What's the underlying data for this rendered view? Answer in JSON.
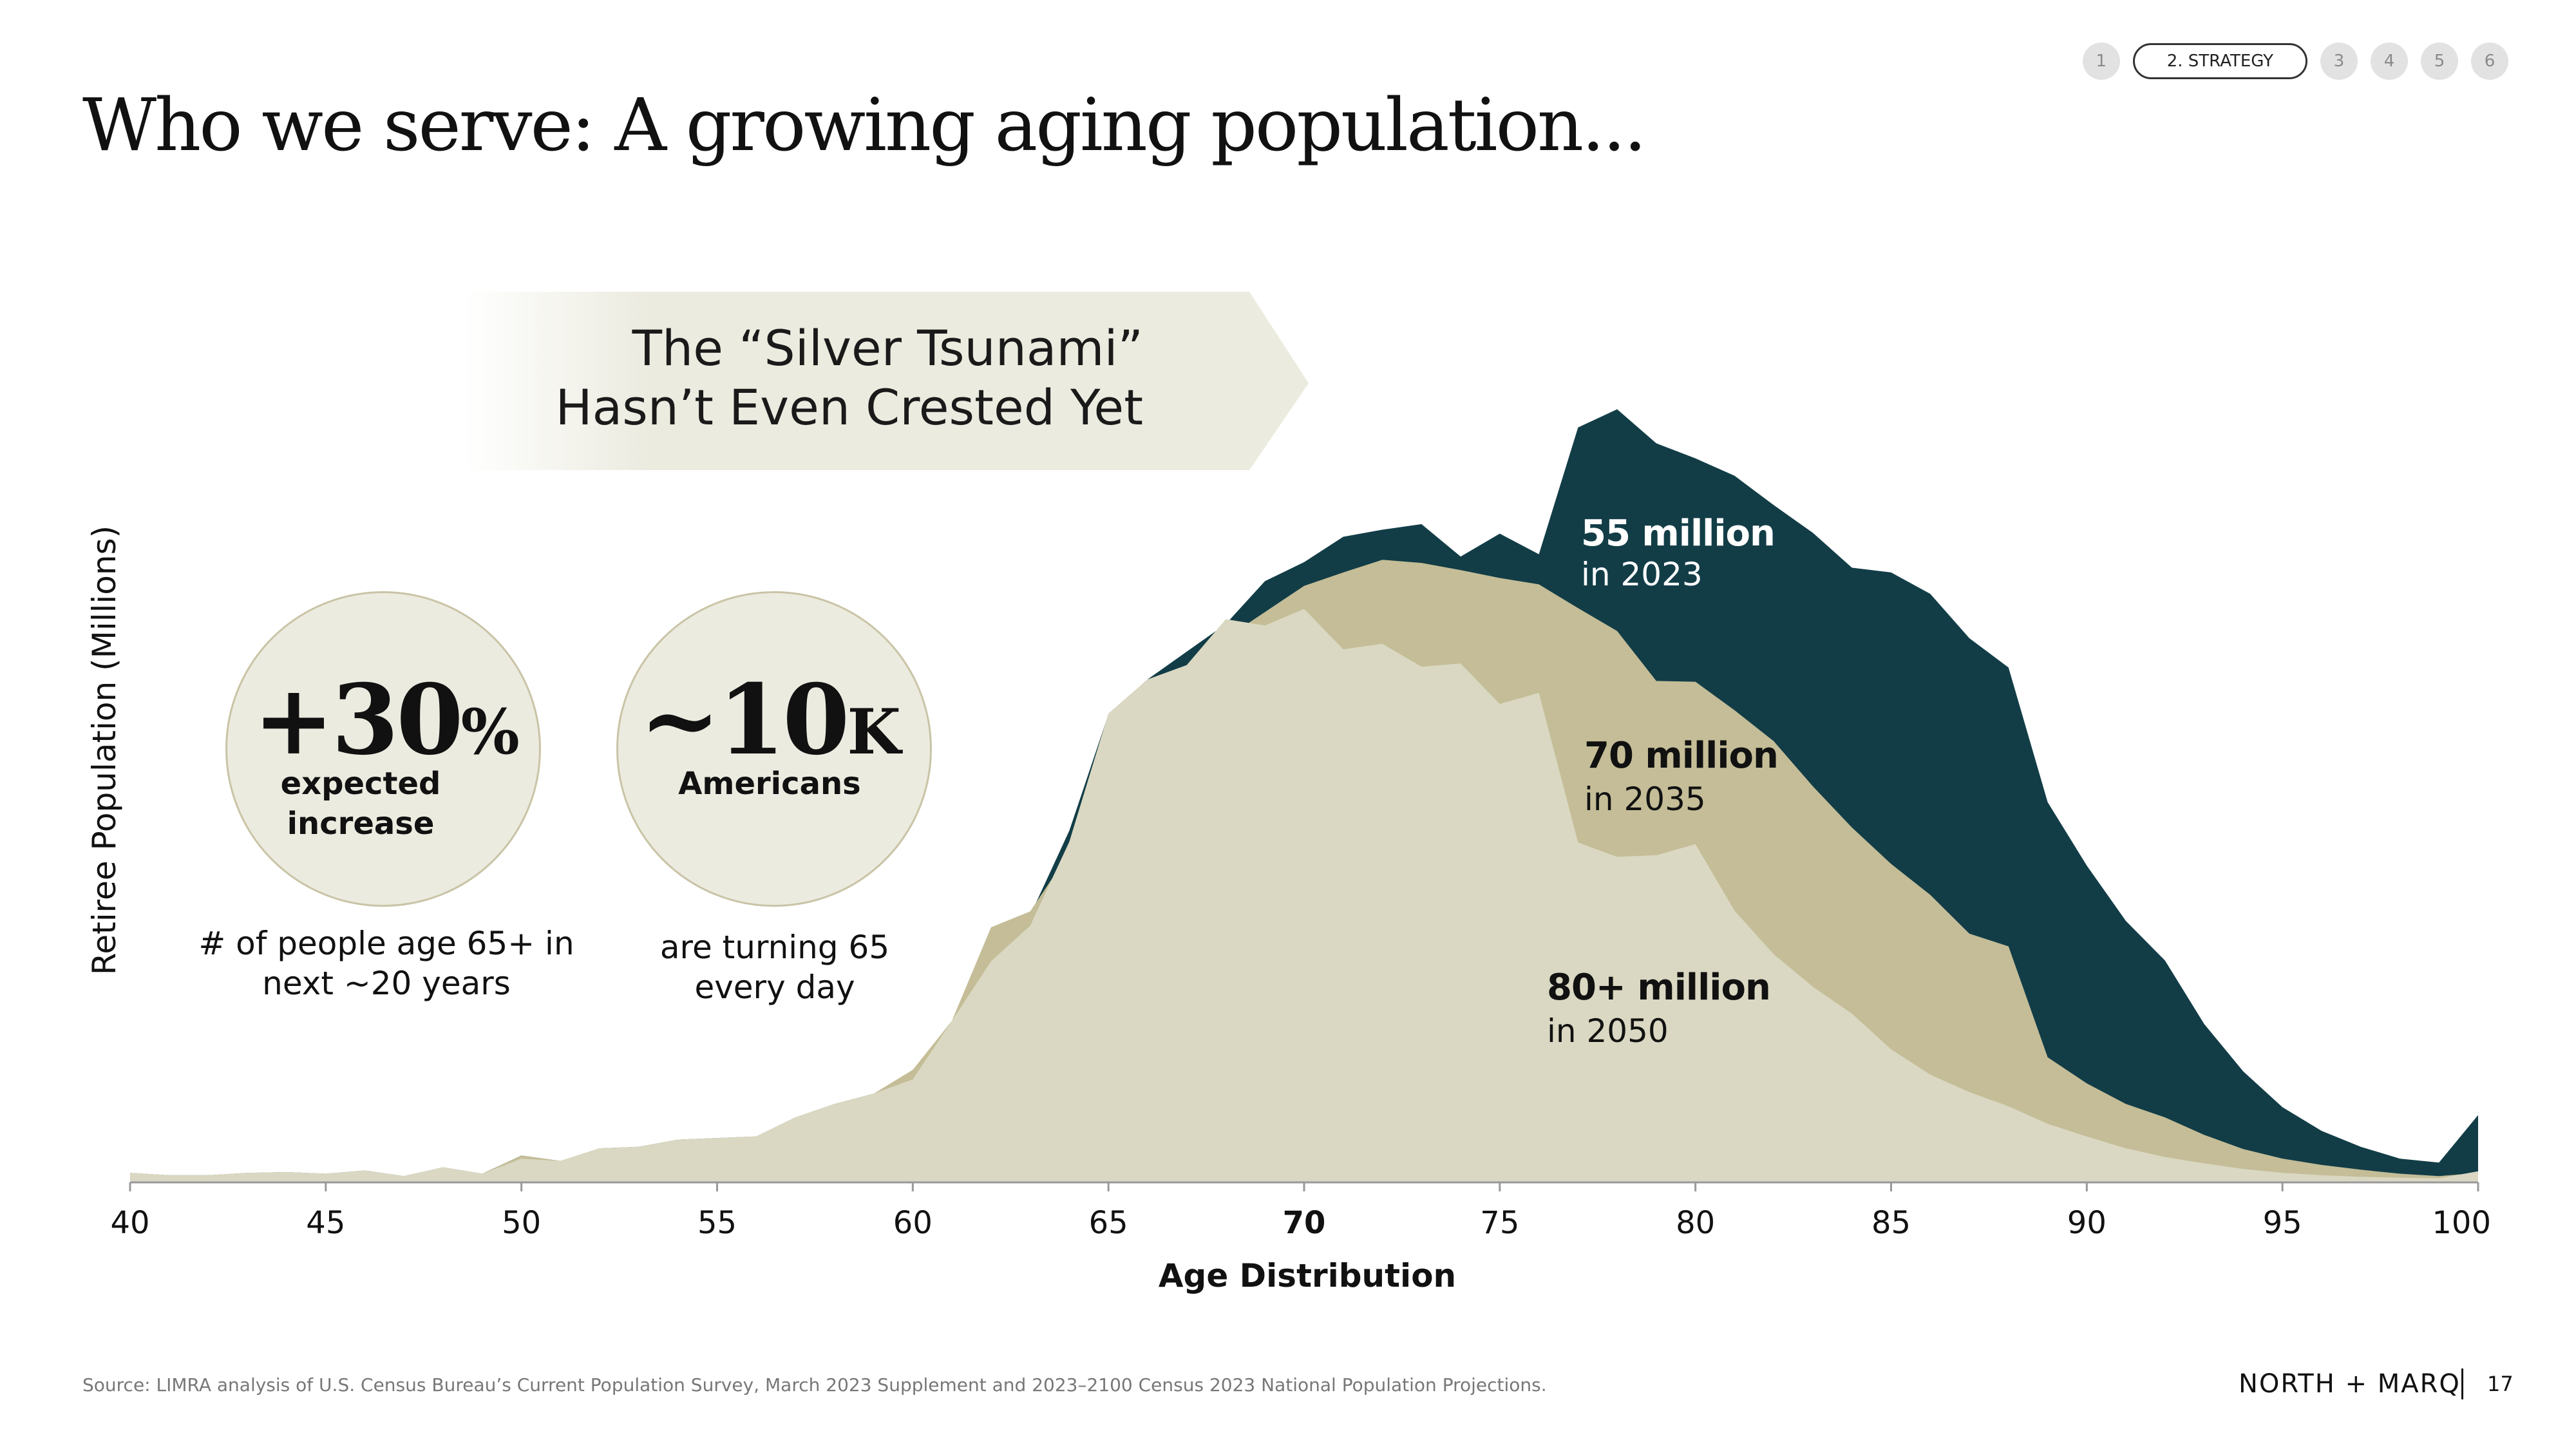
{
  "slide": {
    "title": "Who we serve: A growing aging population...",
    "page_number": "17",
    "logo_text": "NORTH + MARQ",
    "source": "Source: LIMRA analysis of U.S. Census Bureau’s Current Population Survey, March 2023 Supplement and 2023–2100 Census 2023 National Population Projections."
  },
  "nav": {
    "items": [
      "1",
      "2. STRATEGY",
      "3",
      "4",
      "5",
      "6"
    ],
    "active_index": 1
  },
  "banner": {
    "line1": "The “Silver Tsunami”",
    "line2": "Hasn’t Even Crested Yet"
  },
  "stats": [
    {
      "big": "+30",
      "big_suffix": "%",
      "sub": "expected increase",
      "desc_line1": "# of people age 65+ in",
      "desc_line2": "next ~20 years"
    },
    {
      "big": "~10",
      "big_suffix": "K",
      "sub": "Americans",
      "desc_line1": "are turning 65",
      "desc_line2": "every day"
    }
  ],
  "annotations": [
    {
      "value": "55 million",
      "year": "in 2023",
      "color": "#ffffff"
    },
    {
      "value": "70 million",
      "year": "in 2035",
      "color": "#111111"
    },
    {
      "value": "80+ million",
      "year": "in 2050",
      "color": "#111111"
    }
  ],
  "colors": {
    "series_2050": "#123d47",
    "series_2035": "#c4bd97",
    "series_2023": "#dad8c2",
    "banner_fill": "#ecebe0",
    "circle_fill": "#ecebe0"
  },
  "chart_data": {
    "type": "area",
    "title": "",
    "xlabel": "Age Distribution",
    "ylabel": "Retiree Population (Millions)",
    "x": [
      40,
      41,
      42,
      43,
      44,
      45,
      46,
      47,
      48,
      49,
      50,
      51,
      52,
      53,
      54,
      55,
      56,
      57,
      58,
      59,
      60,
      61,
      62,
      63,
      64,
      65,
      66,
      67,
      68,
      69,
      70,
      71,
      72,
      73,
      74,
      75,
      76,
      77,
      78,
      79,
      80,
      81,
      82,
      83,
      84,
      85,
      86,
      87,
      88,
      89,
      90,
      91,
      92,
      93,
      94,
      95,
      96,
      97,
      98,
      99,
      100
    ],
    "x_ticks": [
      40,
      45,
      50,
      55,
      60,
      65,
      70,
      75,
      80,
      85,
      90,
      95,
      100
    ],
    "highlight_tick": 70,
    "xlim": [
      40,
      100
    ],
    "grid": false,
    "legend": "none",
    "series": [
      {
        "values": [
          0.12,
          0.09,
          0.09,
          0.12,
          0.13,
          0.11,
          0.15,
          0.08,
          0.19,
          0.11,
          0.34,
          0.27,
          0.43,
          0.45,
          0.54,
          0.56,
          0.58,
          0.82,
          0.99,
          1.12,
          1.25,
          1.92,
          2.81,
          3.37,
          4.44,
          5.91,
          6.35,
          6.7,
          7.05,
          7.59,
          7.83,
          8.15,
          8.24,
          8.31,
          7.9,
          8.19,
          7.93,
          9.53,
          9.76,
          9.33,
          9.14,
          8.92,
          8.55,
          8.2,
          7.76,
          7.7,
          7.43,
          6.87,
          6.5,
          4.8,
          4.0,
          3.3,
          2.8,
          2.0,
          1.4,
          0.95,
          0.65,
          0.45,
          0.3,
          0.25,
          0.85
        ]
      },
      {
        "values": [
          0.12,
          0.09,
          0.09,
          0.12,
          0.13,
          0.11,
          0.15,
          0.08,
          0.19,
          0.11,
          0.34,
          0.27,
          0.43,
          0.45,
          0.54,
          0.56,
          0.58,
          0.82,
          0.99,
          1.12,
          1.42,
          2.04,
          3.22,
          3.42,
          4.16,
          5.73,
          6.04,
          6.34,
          6.87,
          7.2,
          7.53,
          7.7,
          7.86,
          7.82,
          7.73,
          7.63,
          7.55,
          7.25,
          6.96,
          6.33,
          6.32,
          5.96,
          5.57,
          5.0,
          4.48,
          4.02,
          3.63,
          3.14,
          2.98,
          1.58,
          1.25,
          0.99,
          0.82,
          0.6,
          0.42,
          0.3,
          0.22,
          0.16,
          0.11,
          0.08,
          0.12
        ]
      },
      {
        "values": [
          0.12,
          0.09,
          0.09,
          0.12,
          0.13,
          0.11,
          0.15,
          0.08,
          0.19,
          0.11,
          0.3,
          0.27,
          0.43,
          0.45,
          0.54,
          0.56,
          0.58,
          0.82,
          0.99,
          1.12,
          1.3,
          2.04,
          2.79,
          3.24,
          4.3,
          5.92,
          6.35,
          6.53,
          7.11,
          7.03,
          7.24,
          6.73,
          6.8,
          6.51,
          6.55,
          6.04,
          6.18,
          4.29,
          4.11,
          4.13,
          4.27,
          3.43,
          2.88,
          2.47,
          2.13,
          1.68,
          1.36,
          1.14,
          0.96,
          0.74,
          0.58,
          0.43,
          0.32,
          0.24,
          0.17,
          0.12,
          0.09,
          0.07,
          0.06,
          0.05,
          0.14
        ]
      }
    ]
  }
}
